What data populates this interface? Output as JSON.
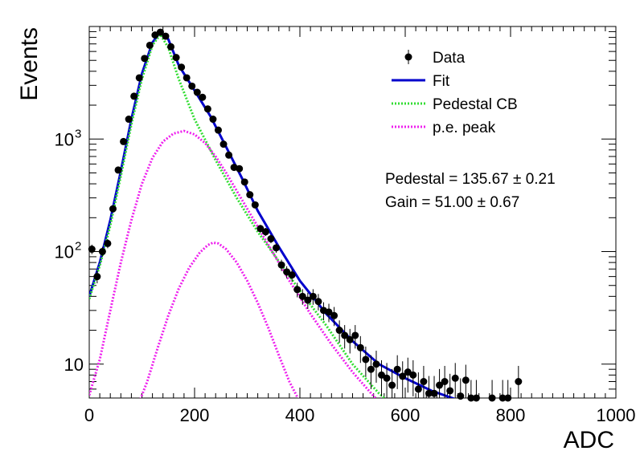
{
  "chart_data": {
    "type": "scatter",
    "xlabel": "ADC",
    "ylabel": "Events",
    "xlim": [
      0,
      1000
    ],
    "ylim": [
      5,
      10000
    ],
    "yscale": "log",
    "grid": false,
    "legend_position": "top-right",
    "x_ticks": [
      {
        "value": 0,
        "label": "0"
      },
      {
        "value": 200,
        "label": "200"
      },
      {
        "value": 400,
        "label": "400"
      },
      {
        "value": 600,
        "label": "600"
      },
      {
        "value": 800,
        "label": "800"
      },
      {
        "value": 1000,
        "label": "1000"
      }
    ],
    "y_ticks": [
      {
        "value": 10,
        "base": "10",
        "exp": ""
      },
      {
        "value": 100,
        "base": "10",
        "exp": "2"
      },
      {
        "value": 1000,
        "base": "10",
        "exp": "3"
      }
    ],
    "legend": [
      {
        "label": "Data",
        "style": "marker",
        "color": "#000000"
      },
      {
        "label": "Fit",
        "style": "solid",
        "color": "#0000cc"
      },
      {
        "label": "Pedestal CB",
        "style": "dotted",
        "color": "#33dd33"
      },
      {
        "label": "p.e. peak",
        "style": "dotted",
        "color": "#ee22ee"
      }
    ],
    "annotations": [
      {
        "text": "Pedestal = 135.67 ± 0.21"
      },
      {
        "text": "Gain = 51.00 ± 0.67"
      }
    ],
    "series": [
      {
        "name": "Data",
        "kind": "points",
        "color": "#000000",
        "points": [
          [
            5,
            105
          ],
          [
            15,
            60
          ],
          [
            25,
            100
          ],
          [
            35,
            118
          ],
          [
            45,
            240
          ],
          [
            55,
            530
          ],
          [
            65,
            950
          ],
          [
            75,
            1500
          ],
          [
            85,
            2400
          ],
          [
            95,
            3500
          ],
          [
            105,
            5200
          ],
          [
            115,
            6800
          ],
          [
            125,
            8400
          ],
          [
            135,
            8900
          ],
          [
            145,
            8200
          ],
          [
            155,
            6600
          ],
          [
            165,
            5300
          ],
          [
            175,
            4350
          ],
          [
            185,
            3500
          ],
          [
            195,
            2950
          ],
          [
            205,
            2600
          ],
          [
            215,
            2350
          ],
          [
            225,
            1850
          ],
          [
            235,
            1500
          ],
          [
            245,
            1200
          ],
          [
            255,
            900
          ],
          [
            265,
            720
          ],
          [
            275,
            560
          ],
          [
            285,
            545
          ],
          [
            295,
            415
          ],
          [
            305,
            320
          ],
          [
            315,
            260
          ],
          [
            325,
            160
          ],
          [
            335,
            150
          ],
          [
            345,
            130
          ],
          [
            355,
            108
          ],
          [
            365,
            76
          ],
          [
            375,
            66
          ],
          [
            385,
            62
          ],
          [
            395,
            46
          ],
          [
            405,
            40
          ],
          [
            415,
            37
          ],
          [
            425,
            40
          ],
          [
            435,
            36
          ],
          [
            445,
            30
          ],
          [
            455,
            29
          ],
          [
            465,
            27
          ],
          [
            475,
            20
          ],
          [
            485,
            18
          ],
          [
            495,
            16.5
          ],
          [
            505,
            18
          ],
          [
            515,
            14
          ],
          [
            525,
            11
          ],
          [
            535,
            9
          ],
          [
            545,
            10
          ],
          [
            555,
            8
          ],
          [
            565,
            7.5
          ],
          [
            575,
            6.5
          ],
          [
            585,
            9
          ],
          [
            595,
            7.8
          ],
          [
            605,
            8.5
          ],
          [
            615,
            8
          ],
          [
            625,
            6
          ],
          [
            635,
            7
          ],
          [
            645,
            5.5
          ],
          [
            655,
            5.5
          ],
          [
            665,
            6.5
          ],
          [
            675,
            7
          ],
          [
            685,
            5.8
          ],
          [
            695,
            7.5
          ],
          [
            705,
            5.2
          ],
          [
            715,
            7.2
          ],
          [
            725,
            5
          ],
          [
            735,
            5
          ],
          [
            765,
            5
          ],
          [
            785,
            5
          ],
          [
            795,
            5
          ],
          [
            815,
            7
          ]
        ]
      },
      {
        "name": "Fit",
        "kind": "solid",
        "color": "#0000cc",
        "points": [
          [
            0,
            40
          ],
          [
            20,
            80
          ],
          [
            40,
            190
          ],
          [
            60,
            520
          ],
          [
            80,
            1500
          ],
          [
            100,
            3800
          ],
          [
            120,
            7200
          ],
          [
            135,
            8900
          ],
          [
            150,
            7700
          ],
          [
            170,
            4500
          ],
          [
            200,
            2700
          ],
          [
            230,
            1600
          ],
          [
            260,
            850
          ],
          [
            290,
            450
          ],
          [
            320,
            230
          ],
          [
            360,
            110
          ],
          [
            400,
            55
          ],
          [
            450,
            28
          ],
          [
            500,
            16
          ],
          [
            550,
            10
          ],
          [
            600,
            7.5
          ],
          [
            650,
            5.8
          ],
          [
            700,
            4.8
          ]
        ]
      },
      {
        "name": "Pedestal CB",
        "kind": "dotted",
        "color": "#33dd33",
        "points": [
          [
            0,
            38
          ],
          [
            20,
            75
          ],
          [
            40,
            170
          ],
          [
            60,
            470
          ],
          [
            80,
            1350
          ],
          [
            100,
            3400
          ],
          [
            120,
            6800
          ],
          [
            135,
            8500
          ],
          [
            150,
            6500
          ],
          [
            170,
            3400
          ],
          [
            200,
            1500
          ],
          [
            240,
            650
          ],
          [
            280,
            300
          ],
          [
            320,
            150
          ],
          [
            360,
            82
          ],
          [
            400,
            45
          ],
          [
            450,
            22
          ],
          [
            500,
            10
          ],
          [
            550,
            5.5
          ],
          [
            570,
            4.6
          ]
        ]
      },
      {
        "name": "p.e. peak",
        "kind": "dotted",
        "color": "#ee22ee",
        "points": [
          [
            0,
            5.3
          ],
          [
            20,
            11
          ],
          [
            40,
            30
          ],
          [
            60,
            80
          ],
          [
            80,
            190
          ],
          [
            100,
            400
          ],
          [
            120,
            680
          ],
          [
            140,
            950
          ],
          [
            160,
            1120
          ],
          [
            180,
            1180
          ],
          [
            200,
            1100
          ],
          [
            220,
            920
          ],
          [
            240,
            700
          ],
          [
            260,
            500
          ],
          [
            300,
            240
          ],
          [
            340,
            115
          ],
          [
            380,
            55
          ],
          [
            420,
            28
          ],
          [
            460,
            15
          ],
          [
            500,
            8.5
          ],
          [
            540,
            5.2
          ],
          [
            550,
            4.6
          ]
        ]
      },
      {
        "name": "p.e. peak",
        "kind": "dotted",
        "color": "#ee22ee",
        "points": [
          [
            95,
            4.6
          ],
          [
            110,
            7
          ],
          [
            130,
            14
          ],
          [
            150,
            27
          ],
          [
            170,
            47
          ],
          [
            190,
            72
          ],
          [
            210,
            98
          ],
          [
            225,
            114
          ],
          [
            235,
            120
          ],
          [
            245,
            118
          ],
          [
            260,
            105
          ],
          [
            280,
            80
          ],
          [
            300,
            55
          ],
          [
            320,
            35
          ],
          [
            340,
            21
          ],
          [
            360,
            12
          ],
          [
            380,
            7
          ],
          [
            400,
            4.6
          ]
        ]
      }
    ]
  }
}
